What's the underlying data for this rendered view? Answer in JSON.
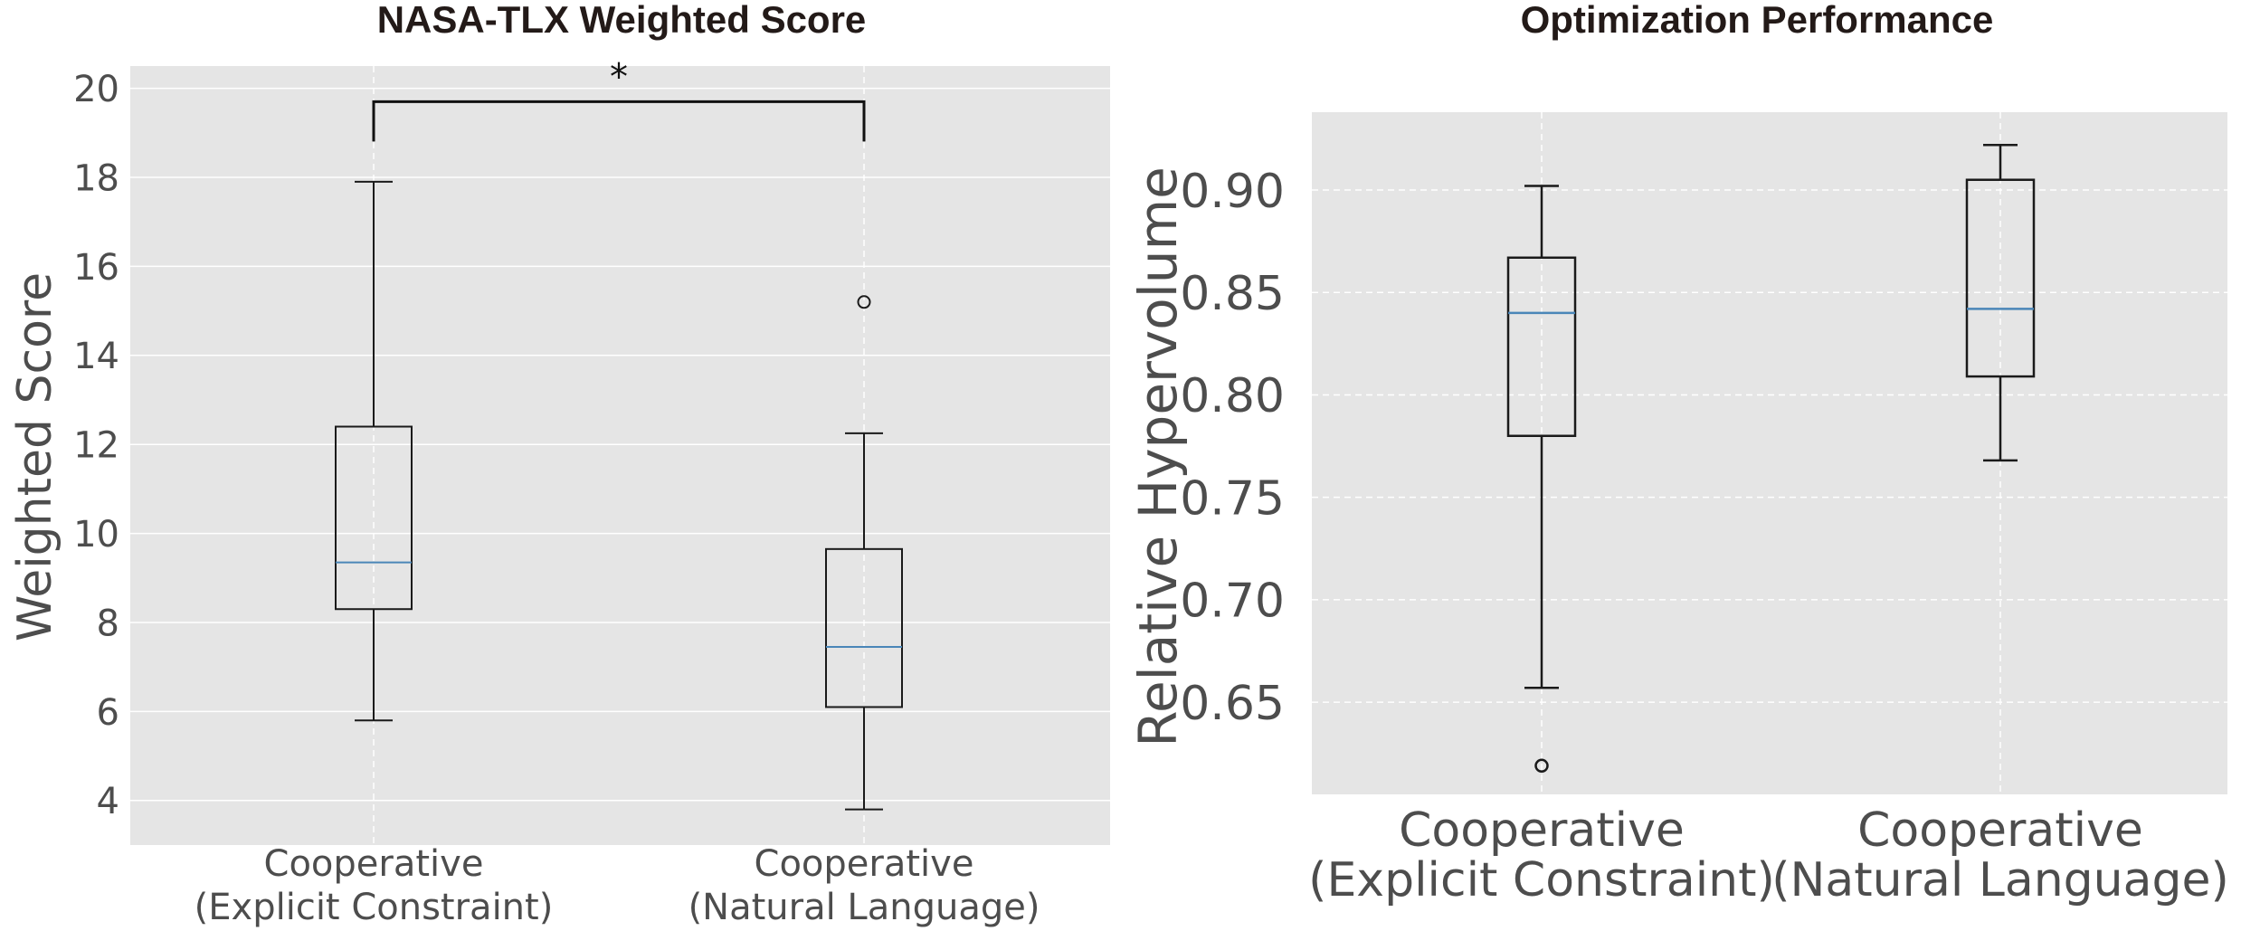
{
  "chart_data": [
    {
      "type": "box",
      "title": "NASA-TLX Weighted Score",
      "xlabel": "",
      "ylabel": "Weighted Score",
      "ylim": [
        3,
        20.5
      ],
      "yticks": [
        4,
        6,
        8,
        10,
        12,
        14,
        16,
        18,
        20
      ],
      "tick_labels": [
        "4",
        "6",
        "8",
        "10",
        "12",
        "14",
        "16",
        "18",
        "20"
      ],
      "grid": "on, dashed vertical",
      "categories": [
        {
          "line1": "Cooperative",
          "line2": "(Explicit Constraint)"
        },
        {
          "line1": "Cooperative",
          "line2": "(Natural Language)"
        }
      ],
      "boxes": [
        {
          "whislo": 5.8,
          "q1": 8.3,
          "med": 9.35,
          "q3": 12.4,
          "whishi": 17.9,
          "fliers": []
        },
        {
          "whislo": 3.8,
          "q1": 6.1,
          "med": 7.45,
          "q3": 9.65,
          "whishi": 12.25,
          "fliers": [
            15.2
          ]
        }
      ],
      "significance": {
        "label": "*",
        "between": [
          0,
          1
        ],
        "y": 19.7
      }
    },
    {
      "type": "box",
      "title": "Optimization Performance",
      "xlabel": "",
      "ylabel": "Relative Hypervolume",
      "ylim": [
        0.605,
        0.938
      ],
      "yticks": [
        0.65,
        0.7,
        0.75,
        0.8,
        0.85,
        0.9
      ],
      "tick_labels": [
        "0.65",
        "0.70",
        "0.75",
        "0.80",
        "0.85",
        "0.90"
      ],
      "grid": "on, dashed",
      "categories": [
        {
          "line1": "Cooperative",
          "line2": "(Explicit Constraint)"
        },
        {
          "line1": "Cooperative",
          "line2": "(Natural Language)"
        }
      ],
      "boxes": [
        {
          "whislo": 0.657,
          "q1": 0.78,
          "med": 0.84,
          "q3": 0.867,
          "whishi": 0.902,
          "fliers": [
            0.619
          ]
        },
        {
          "whislo": 0.768,
          "q1": 0.809,
          "med": 0.842,
          "q3": 0.905,
          "whishi": 0.922,
          "fliers": []
        }
      ]
    }
  ],
  "colors": {
    "panel_bg": "#e5e5e5",
    "grid": "#ffffff",
    "box": "#1a1a1a",
    "median": "#4a86b8",
    "title": "#231a18",
    "tick": "#4d4d4d"
  }
}
